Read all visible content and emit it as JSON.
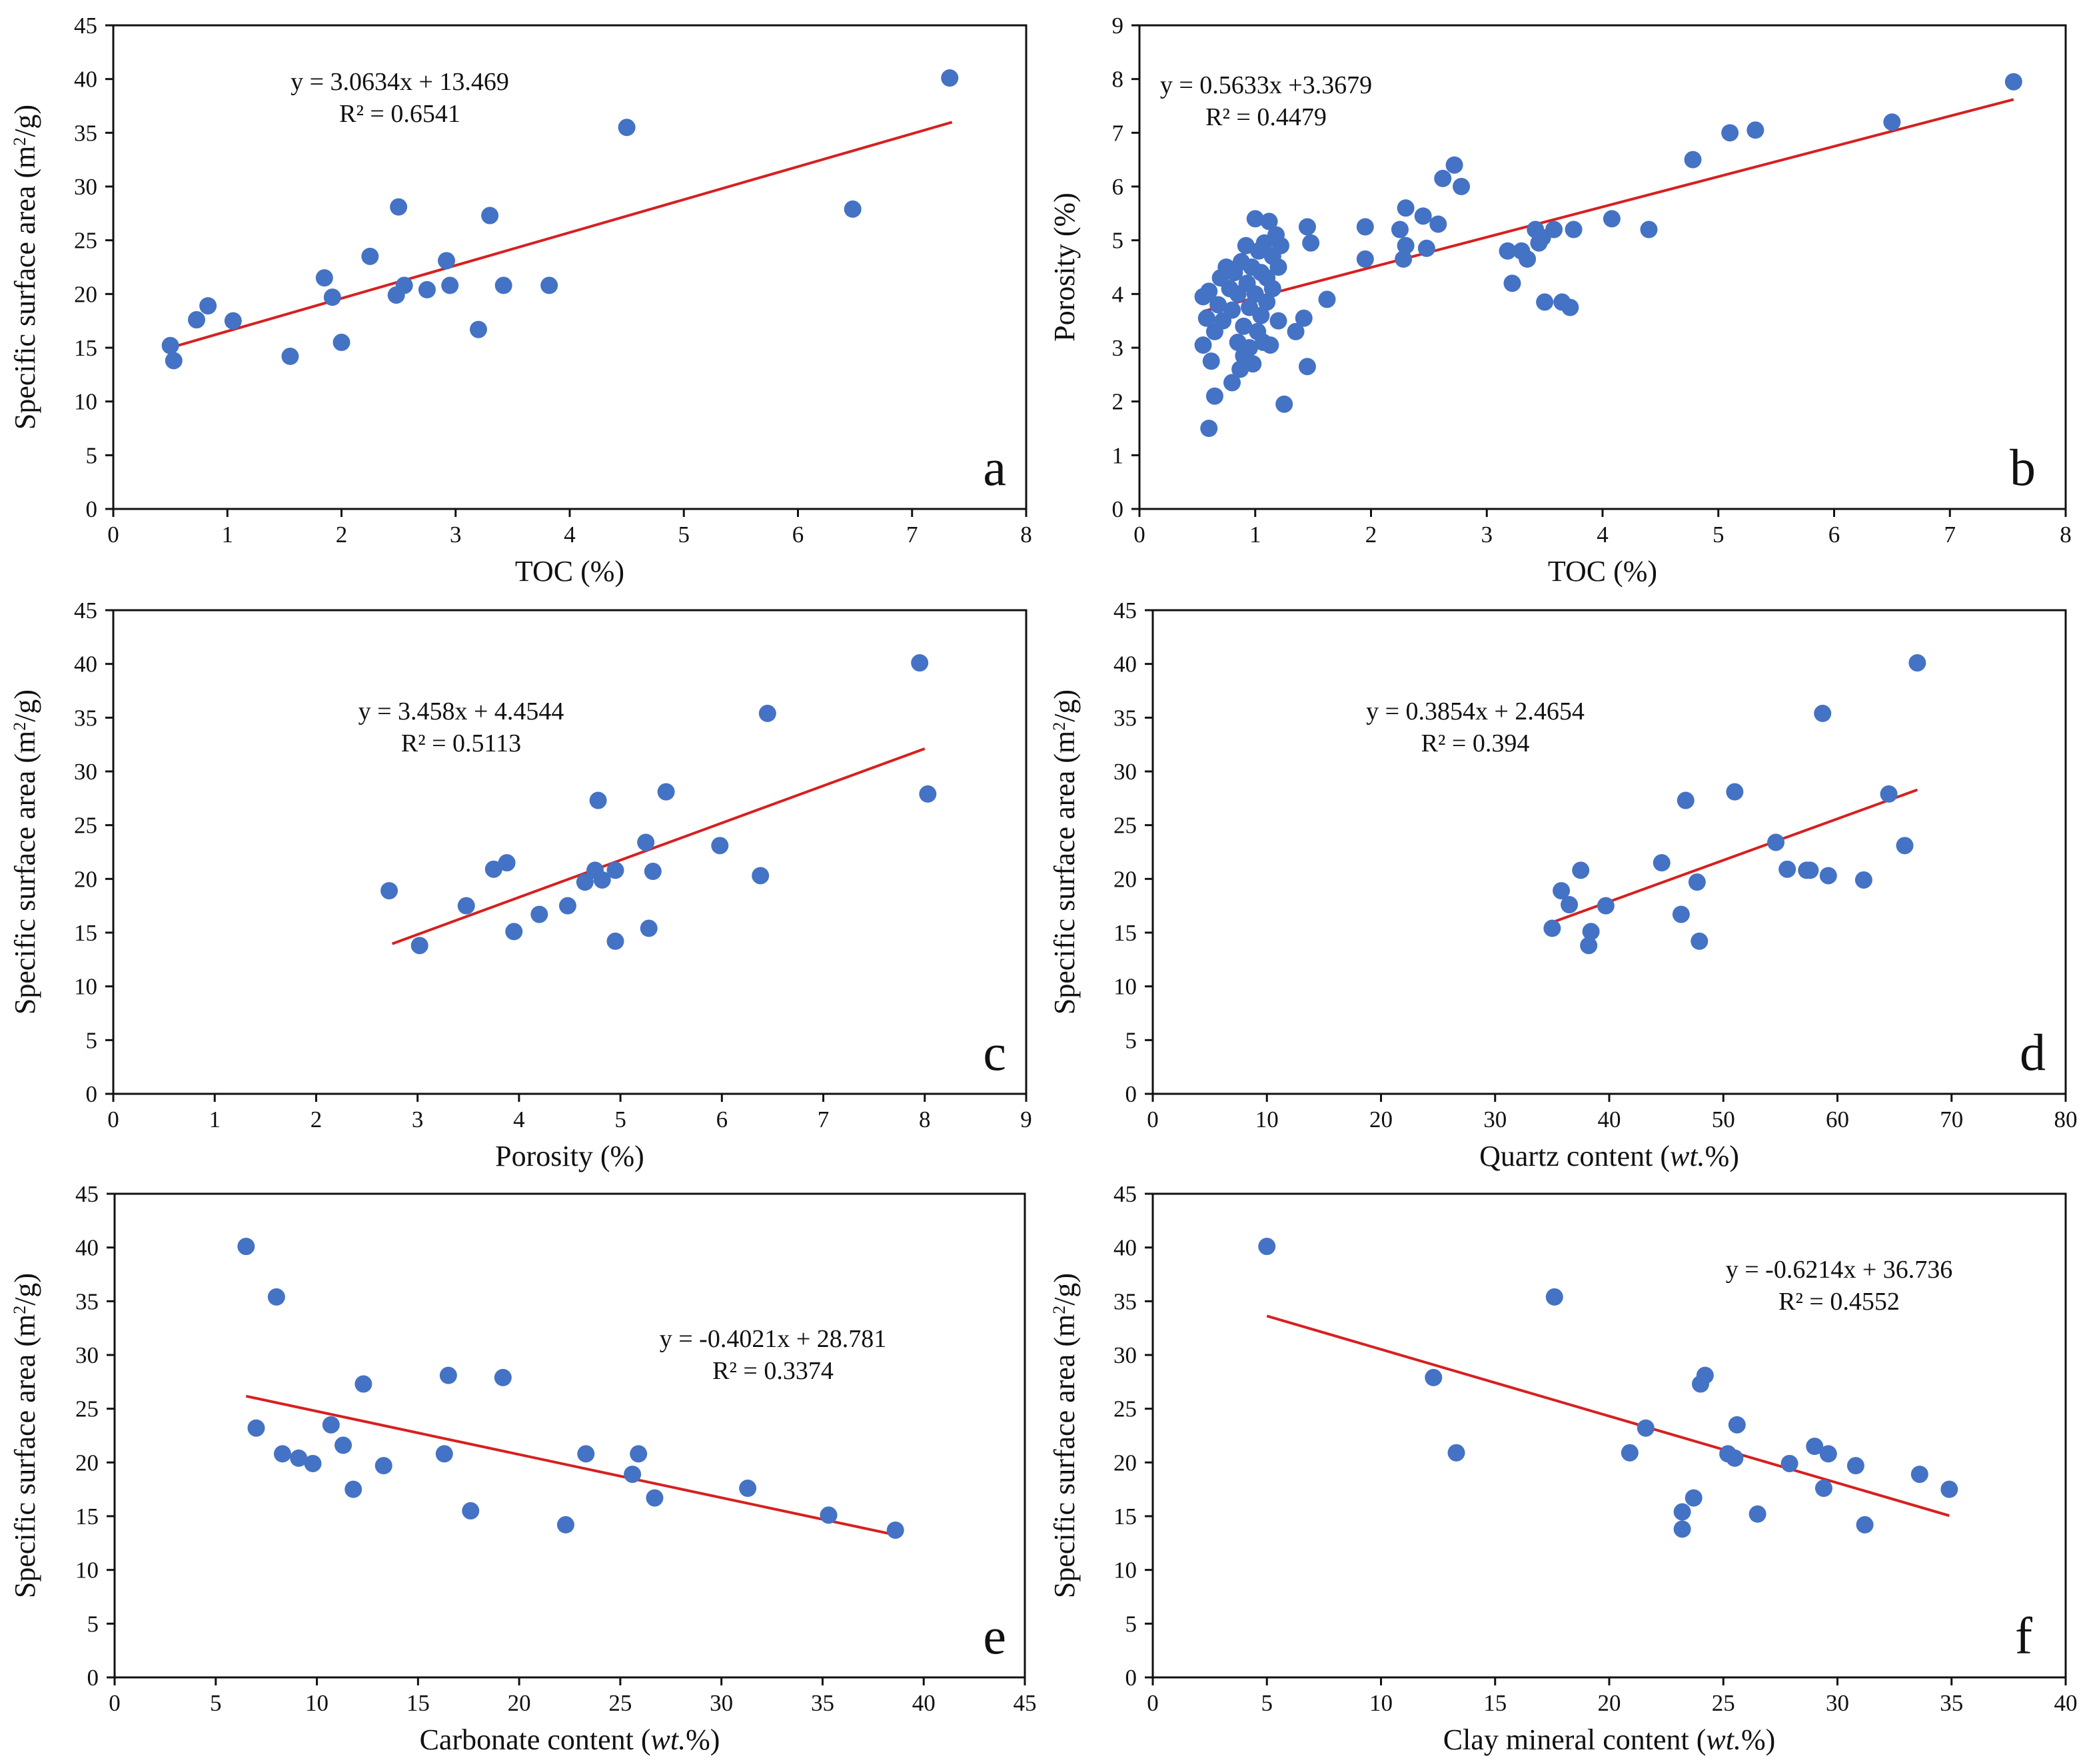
{
  "colors": {
    "point": "#4472C4",
    "trend": "#D62020",
    "axis": "#111111"
  },
  "chart_data": [
    {
      "id": "a",
      "type": "scatter",
      "panel_label": "a",
      "xlabel": "TOC (%)",
      "ylabel": "Specific surface area (m²/g)",
      "xlim": [
        0,
        8
      ],
      "ylim": [
        0,
        45
      ],
      "x_ticks": [
        "0",
        "1",
        "2",
        "3",
        "4",
        "5",
        "6",
        "7",
        "8"
      ],
      "y_ticks": [
        "0",
        "5",
        "10",
        "15",
        "20",
        "25",
        "30",
        "35",
        "40",
        "45"
      ],
      "equation": "y = 3.0634x + 13.469",
      "r2": "R² = 0.6541",
      "trend": {
        "slope": 3.0634,
        "intercept": 13.469,
        "x_range": [
          0.5,
          7.35
        ]
      },
      "points": [
        [
          0.5,
          15.2
        ],
        [
          0.53,
          13.8
        ],
        [
          0.73,
          17.6
        ],
        [
          0.83,
          18.9
        ],
        [
          1.05,
          17.5
        ],
        [
          1.55,
          14.2
        ],
        [
          1.85,
          21.5
        ],
        [
          1.92,
          19.7
        ],
        [
          2.0,
          15.5
        ],
        [
          2.25,
          23.5
        ],
        [
          2.48,
          19.9
        ],
        [
          2.5,
          28.1
        ],
        [
          2.55,
          20.8
        ],
        [
          2.75,
          20.4
        ],
        [
          2.92,
          23.1
        ],
        [
          2.95,
          20.8
        ],
        [
          3.2,
          16.7
        ],
        [
          3.3,
          27.3
        ],
        [
          3.42,
          20.8
        ],
        [
          3.82,
          20.8
        ],
        [
          4.5,
          35.5
        ],
        [
          6.48,
          27.9
        ],
        [
          7.33,
          40.1
        ]
      ]
    },
    {
      "id": "b",
      "type": "scatter",
      "panel_label": "b",
      "xlabel": "TOC (%)",
      "ylabel": "Porosity  (%)",
      "xlim": [
        0,
        8
      ],
      "ylim": [
        0,
        9
      ],
      "x_ticks": [
        "0",
        "1",
        "2",
        "3",
        "4",
        "5",
        "6",
        "7",
        "8"
      ],
      "y_ticks": [
        "0",
        "1",
        "2",
        "3",
        "4",
        "5",
        "6",
        "7",
        "8",
        "9"
      ],
      "equation": "y = 0.5633x +3.3679",
      "r2": "R² = 0.4479",
      "trend": {
        "slope": 0.5633,
        "intercept": 3.3679,
        "x_range": [
          0.55,
          7.55
        ]
      },
      "points": [
        [
          0.55,
          3.95
        ],
        [
          0.55,
          3.05
        ],
        [
          0.58,
          3.55
        ],
        [
          0.6,
          4.05
        ],
        [
          0.62,
          2.75
        ],
        [
          0.6,
          1.5
        ],
        [
          0.65,
          2.1
        ],
        [
          0.65,
          3.3
        ],
        [
          0.68,
          3.8
        ],
        [
          0.7,
          4.3
        ],
        [
          0.72,
          3.5
        ],
        [
          0.75,
          4.5
        ],
        [
          0.78,
          4.1
        ],
        [
          0.8,
          3.7
        ],
        [
          0.8,
          2.35
        ],
        [
          0.82,
          4.4
        ],
        [
          0.85,
          3.1
        ],
        [
          0.85,
          4.0
        ],
        [
          0.87,
          2.6
        ],
        [
          0.88,
          4.6
        ],
        [
          0.9,
          3.4
        ],
        [
          0.9,
          2.85
        ],
        [
          0.92,
          4.9
        ],
        [
          0.93,
          4.2
        ],
        [
          0.95,
          3.0
        ],
        [
          0.95,
          3.75
        ],
        [
          0.97,
          4.5
        ],
        [
          0.98,
          2.7
        ],
        [
          1.0,
          5.4
        ],
        [
          1.0,
          4.0
        ],
        [
          1.02,
          3.3
        ],
        [
          1.03,
          4.8
        ],
        [
          1.05,
          3.6
        ],
        [
          1.05,
          4.4
        ],
        [
          1.07,
          3.1
        ],
        [
          1.08,
          4.95
        ],
        [
          1.1,
          3.85
        ],
        [
          1.1,
          4.3
        ],
        [
          1.12,
          5.35
        ],
        [
          1.13,
          3.05
        ],
        [
          1.15,
          4.7
        ],
        [
          1.15,
          4.1
        ],
        [
          1.18,
          5.1
        ],
        [
          1.2,
          4.5
        ],
        [
          1.2,
          3.5
        ],
        [
          1.22,
          4.9
        ],
        [
          1.25,
          1.95
        ],
        [
          1.35,
          3.3
        ],
        [
          1.42,
          3.55
        ],
        [
          1.45,
          2.65
        ],
        [
          1.45,
          5.25
        ],
        [
          1.48,
          4.95
        ],
        [
          1.62,
          3.9
        ],
        [
          1.95,
          5.25
        ],
        [
          1.95,
          4.65
        ],
        [
          2.25,
          5.2
        ],
        [
          2.28,
          4.65
        ],
        [
          2.3,
          4.9
        ],
        [
          2.3,
          5.6
        ],
        [
          2.45,
          5.45
        ],
        [
          2.48,
          4.85
        ],
        [
          2.58,
          5.3
        ],
        [
          2.62,
          6.15
        ],
        [
          2.72,
          6.4
        ],
        [
          2.78,
          6.0
        ],
        [
          3.18,
          4.8
        ],
        [
          3.22,
          4.2
        ],
        [
          3.3,
          4.8
        ],
        [
          3.35,
          4.65
        ],
        [
          3.42,
          5.2
        ],
        [
          3.45,
          4.95
        ],
        [
          3.48,
          5.05
        ],
        [
          3.5,
          3.85
        ],
        [
          3.58,
          5.2
        ],
        [
          3.65,
          3.85
        ],
        [
          3.72,
          3.75
        ],
        [
          3.75,
          5.2
        ],
        [
          4.08,
          5.4
        ],
        [
          4.4,
          5.2
        ],
        [
          4.78,
          6.5
        ],
        [
          5.1,
          7.0
        ],
        [
          5.32,
          7.05
        ],
        [
          6.5,
          7.2
        ],
        [
          7.55,
          7.95
        ]
      ]
    },
    {
      "id": "c",
      "type": "scatter",
      "panel_label": "c",
      "xlabel": "Porosity  (%)",
      "ylabel": "Specific surface area (m²/g)",
      "xlim": [
        0,
        9
      ],
      "ylim": [
        0,
        45
      ],
      "x_ticks": [
        "0",
        "1",
        "2",
        "3",
        "4",
        "5",
        "6",
        "7",
        "8",
        "9"
      ],
      "y_ticks": [
        "0",
        "5",
        "10",
        "15",
        "20",
        "25",
        "30",
        "35",
        "40",
        "45"
      ],
      "equation": "y = 3.458x + 4.4544",
      "r2": "R² = 0.5113",
      "trend": {
        "slope": 3.458,
        "intercept": 4.4544,
        "x_range": [
          2.75,
          8.0
        ]
      },
      "points": [
        [
          2.72,
          18.9
        ],
        [
          3.02,
          13.8
        ],
        [
          3.48,
          17.5
        ],
        [
          3.75,
          20.9
        ],
        [
          3.88,
          21.5
        ],
        [
          3.95,
          15.1
        ],
        [
          4.2,
          16.7
        ],
        [
          4.48,
          17.5
        ],
        [
          4.65,
          19.7
        ],
        [
          4.75,
          20.8
        ],
        [
          4.78,
          27.3
        ],
        [
          4.82,
          19.9
        ],
        [
          4.95,
          20.8
        ],
        [
          4.95,
          14.2
        ],
        [
          5.25,
          23.4
        ],
        [
          5.28,
          15.4
        ],
        [
          5.32,
          20.7
        ],
        [
          5.45,
          28.1
        ],
        [
          5.98,
          23.1
        ],
        [
          6.38,
          20.3
        ],
        [
          6.45,
          35.4
        ],
        [
          7.95,
          40.1
        ],
        [
          8.03,
          27.9
        ]
      ]
    },
    {
      "id": "d",
      "type": "scatter",
      "panel_label": "d",
      "xlabel": "Quartz content (wt.%)",
      "ylabel": "Specific surface area (m²/g)",
      "xlim": [
        0,
        80
      ],
      "ylim": [
        0,
        45
      ],
      "x_ticks": [
        "0",
        "10",
        "20",
        "30",
        "40",
        "50",
        "60",
        "70",
        "80"
      ],
      "y_ticks": [
        "0",
        "5",
        "10",
        "15",
        "20",
        "25",
        "30",
        "35",
        "40",
        "45"
      ],
      "equation": "y = 0.3854x + 2.4654",
      "r2": "R² = 0.394",
      "trend": {
        "slope": 0.3854,
        "intercept": 2.4654,
        "x_range": [
          35,
          67
        ]
      },
      "points": [
        [
          35.0,
          15.4
        ],
        [
          35.8,
          18.9
        ],
        [
          36.5,
          17.6
        ],
        [
          37.5,
          20.8
        ],
        [
          38.2,
          13.8
        ],
        [
          38.4,
          15.1
        ],
        [
          39.7,
          17.5
        ],
        [
          44.6,
          21.5
        ],
        [
          46.3,
          16.7
        ],
        [
          46.7,
          27.3
        ],
        [
          47.7,
          19.7
        ],
        [
          47.9,
          14.2
        ],
        [
          51.0,
          28.1
        ],
        [
          54.6,
          23.4
        ],
        [
          55.6,
          20.9
        ],
        [
          57.3,
          20.8
        ],
        [
          57.6,
          20.8
        ],
        [
          58.7,
          35.4
        ],
        [
          59.2,
          20.3
        ],
        [
          62.3,
          19.9
        ],
        [
          64.5,
          27.9
        ],
        [
          65.9,
          23.1
        ],
        [
          67.0,
          40.1
        ]
      ]
    },
    {
      "id": "e",
      "type": "scatter",
      "panel_label": "e",
      "xlabel": "Carbonate content (wt.%)",
      "ylabel": "Specific surface area (m²/g)",
      "xlim": [
        0,
        45
      ],
      "ylim": [
        0,
        45
      ],
      "x_ticks": [
        "0",
        "5",
        "10",
        "15",
        "20",
        "25",
        "30",
        "35",
        "40",
        "45"
      ],
      "y_ticks": [
        "0",
        "5",
        "10",
        "15",
        "20",
        "25",
        "30",
        "35",
        "40",
        "45"
      ],
      "equation": "y = -0.4021x + 28.781",
      "r2": "R² = 0.3374",
      "trend": {
        "slope": -0.4021,
        "intercept": 28.781,
        "x_range": [
          6.5,
          38.5
        ]
      },
      "points": [
        [
          6.5,
          40.1
        ],
        [
          7.0,
          23.2
        ],
        [
          8.0,
          35.4
        ],
        [
          8.3,
          20.8
        ],
        [
          9.1,
          20.4
        ],
        [
          9.8,
          19.9
        ],
        [
          10.7,
          23.5
        ],
        [
          11.3,
          21.6
        ],
        [
          11.8,
          17.5
        ],
        [
          12.3,
          27.3
        ],
        [
          13.3,
          19.7
        ],
        [
          16.3,
          20.8
        ],
        [
          16.5,
          28.1
        ],
        [
          17.6,
          15.5
        ],
        [
          19.2,
          27.9
        ],
        [
          22.3,
          14.2
        ],
        [
          23.3,
          20.8
        ],
        [
          25.6,
          18.9
        ],
        [
          25.9,
          20.8
        ],
        [
          26.7,
          16.7
        ],
        [
          31.3,
          17.6
        ],
        [
          35.3,
          15.1
        ],
        [
          38.6,
          13.7
        ]
      ]
    },
    {
      "id": "f",
      "type": "scatter",
      "panel_label": "f",
      "xlabel": "Clay mineral content (wt.%)",
      "ylabel": "Specific surface area (m²/g)",
      "xlim": [
        0,
        40
      ],
      "ylim": [
        0,
        45
      ],
      "x_ticks": [
        "0",
        "5",
        "10",
        "15",
        "20",
        "25",
        "30",
        "35",
        "40"
      ],
      "y_ticks": [
        "0",
        "5",
        "10",
        "15",
        "20",
        "25",
        "30",
        "35",
        "40",
        "45"
      ],
      "equation": "y = -0.6214x + 36.736",
      "r2": "R² = 0.4552",
      "trend": {
        "slope": -0.6214,
        "intercept": 36.736,
        "x_range": [
          5.0,
          34.9
        ]
      },
      "points": [
        [
          5.0,
          40.1
        ],
        [
          12.3,
          27.9
        ],
        [
          13.3,
          20.9
        ],
        [
          17.6,
          35.4
        ],
        [
          20.9,
          20.9
        ],
        [
          21.6,
          23.2
        ],
        [
          23.2,
          15.4
        ],
        [
          23.2,
          13.8
        ],
        [
          23.7,
          16.7
        ],
        [
          24.0,
          27.3
        ],
        [
          24.2,
          28.1
        ],
        [
          25.2,
          20.8
        ],
        [
          25.5,
          20.4
        ],
        [
          25.6,
          23.5
        ],
        [
          26.5,
          15.2
        ],
        [
          27.9,
          19.9
        ],
        [
          29.0,
          21.5
        ],
        [
          29.4,
          17.6
        ],
        [
          29.6,
          20.8
        ],
        [
          30.8,
          19.7
        ],
        [
          31.2,
          14.2
        ],
        [
          33.6,
          18.9
        ],
        [
          34.9,
          17.5
        ]
      ]
    }
  ]
}
